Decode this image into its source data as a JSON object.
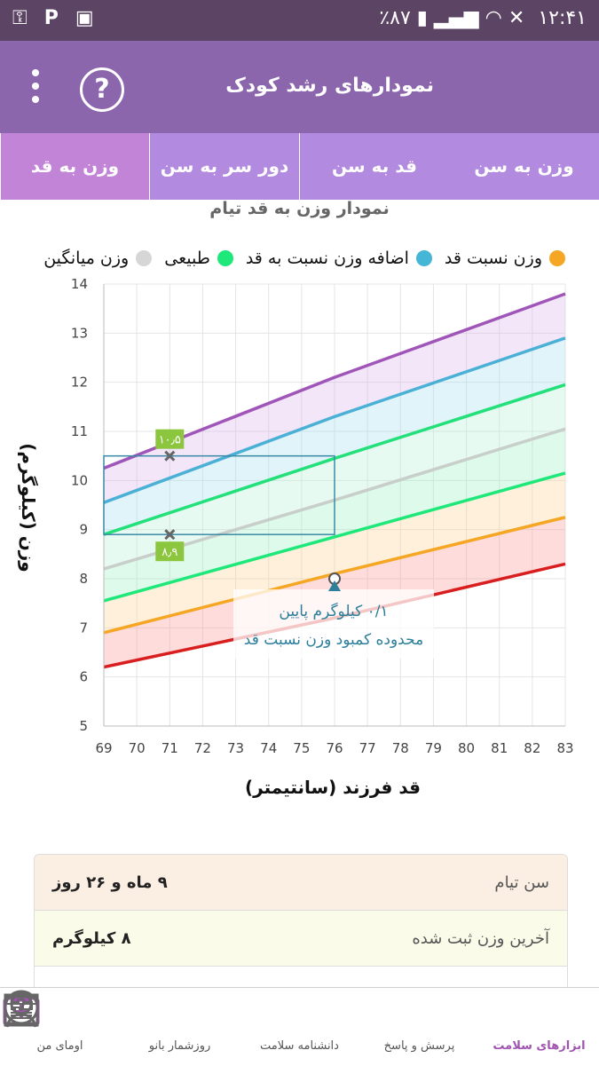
{
  "status": {
    "time": "۱۲:۴۱",
    "battery": "٪۸۷"
  },
  "appbar": {
    "title": "نمودارهای رشد کودک"
  },
  "tabs": [
    {
      "label": "وزن به سن"
    },
    {
      "label": "قد به سن"
    },
    {
      "label": "دور سر به سن"
    },
    {
      "label": "وزن به قد"
    }
  ],
  "chart_data": {
    "type": "line",
    "title": "نمودار وزن به قد تیام",
    "xlabel": "قد فرزند (سانتیمتر)",
    "ylabel": "وزن (کیلوگرم)",
    "xlim": [
      69,
      83
    ],
    "ylim": [
      5,
      14
    ],
    "x_ticks": [
      "69",
      "70",
      "71",
      "72",
      "73",
      "74",
      "75",
      "76",
      "77",
      "78",
      "79",
      "80",
      "81",
      "82",
      "83"
    ],
    "y_ticks": [
      "5",
      "6",
      "7",
      "8",
      "9",
      "10",
      "11",
      "12",
      "13",
      "14"
    ],
    "legend": [
      {
        "label": "وزن نسبت قد",
        "color": "#f5a623"
      },
      {
        "label": "اضافه وزن نسبت به قد",
        "color": "#45b6d6"
      },
      {
        "label": "طبیعی",
        "color": "#1ee87a"
      },
      {
        "label": "وزن میانگین",
        "color": "#d6d6d6"
      }
    ],
    "curves": [
      {
        "color": "#d81e1e",
        "x": [
          69,
          76,
          83
        ],
        "y": [
          6.2,
          7.2,
          8.3
        ]
      },
      {
        "color": "#f5a623",
        "x": [
          69,
          76,
          83
        ],
        "y": [
          6.9,
          8.1,
          9.25
        ]
      },
      {
        "color": "#1ee87a",
        "x": [
          69,
          76,
          83
        ],
        "y": [
          7.55,
          8.85,
          10.15
        ]
      },
      {
        "color": "#c8cfcb",
        "x": [
          69,
          76,
          83
        ],
        "y": [
          8.2,
          9.6,
          11.05
        ]
      },
      {
        "color": "#23e07a",
        "x": [
          69,
          76,
          83
        ],
        "y": [
          8.9,
          10.45,
          11.95
        ]
      },
      {
        "color": "#4ab0d6",
        "x": [
          69,
          76,
          83
        ],
        "y": [
          9.55,
          11.3,
          12.9
        ]
      },
      {
        "color": "#a055b8",
        "x": [
          69,
          76,
          83
        ],
        "y": [
          10.25,
          12.1,
          13.8
        ]
      }
    ],
    "bands": [
      {
        "color": "#ff9a9a"
      },
      {
        "color": "#ffd59a"
      },
      {
        "color": "#9ef2c4"
      },
      {
        "color": "#b9f0d6"
      },
      {
        "color": "#a6dff2"
      },
      {
        "color": "#d9b6ea"
      }
    ],
    "range_box": {
      "x": [
        69,
        76
      ],
      "y": [
        8.9,
        10.5
      ]
    },
    "markers": [
      {
        "x": 71,
        "y": 10.5,
        "label": "۱۰٫۵"
      },
      {
        "x": 71,
        "y": 8.9,
        "label": "۸٫۹"
      }
    ],
    "current_point": {
      "x": 76,
      "y": 8
    },
    "annotation": {
      "line1": "۰/۱ کیلوگرم پایین",
      "line2": "محدوده کمبود وزن نسبت قد"
    }
  },
  "info": {
    "age_label": "سن تیام",
    "age_value": "۹ ماه و ۲۶ روز",
    "weight_label": "آخرین وزن ثبت شده",
    "weight_value": "۸ کیلوگرم"
  },
  "nav": [
    {
      "label": "ابزارهای سلامت",
      "icon": "medical-kit-icon"
    },
    {
      "label": "پرسش و پاسخ",
      "icon": "question-bubble-icon"
    },
    {
      "label": "دانشنامه سلامت",
      "icon": "newspaper-icon"
    },
    {
      "label": "روزشمار بانو",
      "icon": "calendar-icon"
    },
    {
      "label": "اومای من",
      "icon": "woman-profile-icon"
    }
  ]
}
